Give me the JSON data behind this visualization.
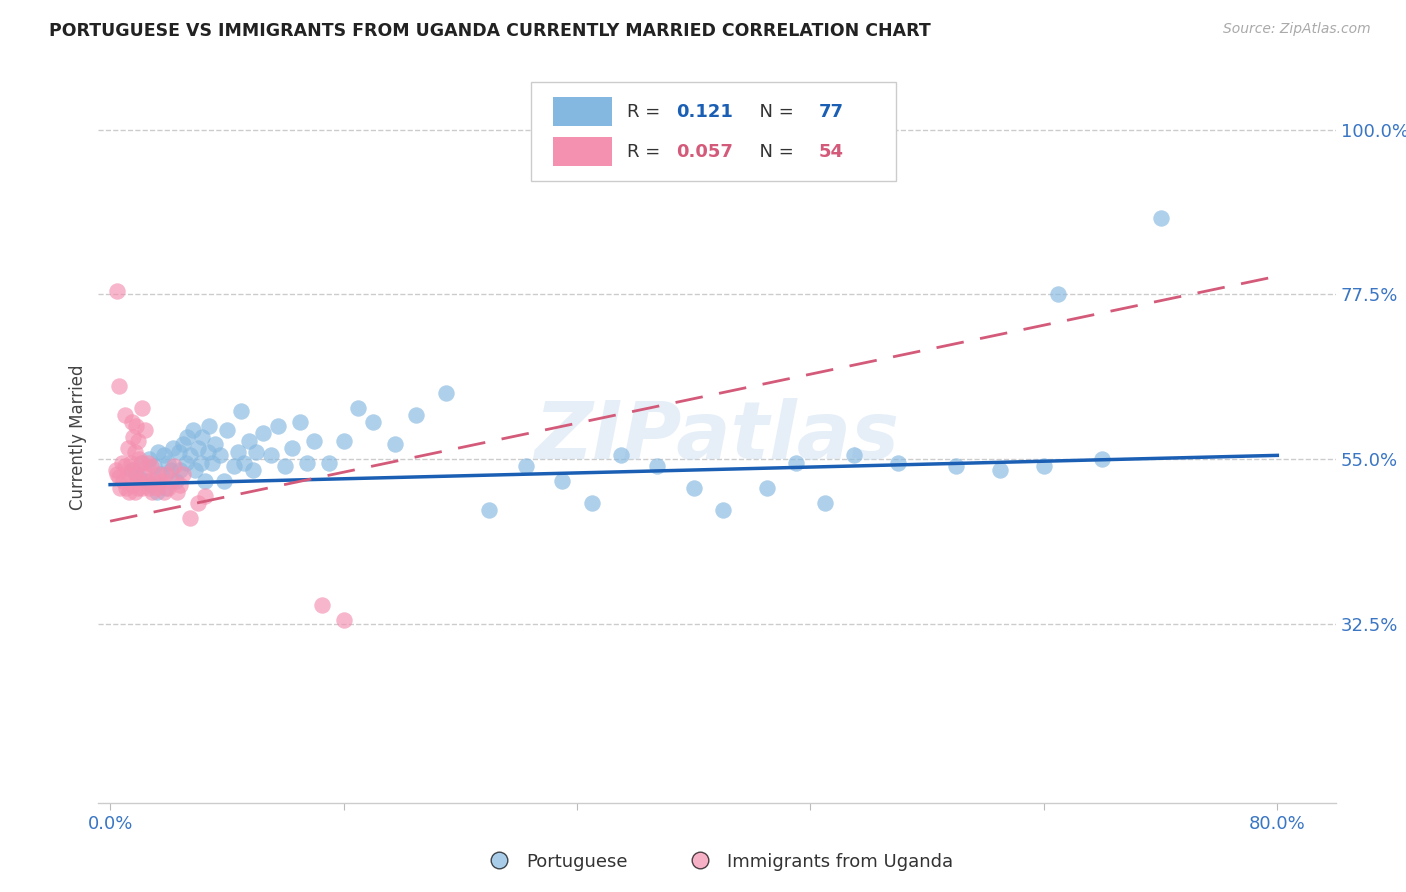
{
  "title": "PORTUGUESE VS IMMIGRANTS FROM UGANDA CURRENTLY MARRIED CORRELATION CHART",
  "source": "Source: ZipAtlas.com",
  "ylabel": "Currently Married",
  "legend1_label": "Portuguese",
  "legend2_label": "Immigrants from Uganda",
  "r1": 0.121,
  "n1": 77,
  "r2": 0.057,
  "n2": 54,
  "xlim": [
    -0.008,
    0.84
  ],
  "ylim": [
    0.08,
    1.08
  ],
  "yticks": [
    0.325,
    0.55,
    0.775,
    1.0
  ],
  "ytick_labels": [
    "32.5%",
    "55.0%",
    "77.5%",
    "100.0%"
  ],
  "xtick_positions": [
    0.0,
    0.16,
    0.32,
    0.48,
    0.64,
    0.8
  ],
  "xtick_labels": [
    "0.0%",
    "",
    "",
    "",
    "",
    "80.0%"
  ],
  "color_blue": "#85b8e0",
  "color_pink": "#f490b0",
  "trendline_blue": "#1a5fb4",
  "trendline_pink": "#d45a7a",
  "watermark": "ZIPatlas",
  "title_color": "#222222",
  "axis_color": "#3a76c4",
  "grid_color": "#cccccc",
  "background_color": "#ffffff",
  "blue_trend_x0": 0.0,
  "blue_trend_y0": 0.515,
  "blue_trend_x1": 0.8,
  "blue_trend_y1": 0.555,
  "pink_trend_x0": 0.0,
  "pink_trend_y0": 0.465,
  "pink_trend_x1": 0.8,
  "pink_trend_y1": 0.8,
  "blue_points_x": [
    0.015,
    0.018,
    0.02,
    0.022,
    0.025,
    0.027,
    0.028,
    0.03,
    0.032,
    0.033,
    0.035,
    0.037,
    0.038,
    0.04,
    0.042,
    0.043,
    0.045,
    0.047,
    0.048,
    0.05,
    0.052,
    0.053,
    0.055,
    0.057,
    0.058,
    0.06,
    0.062,
    0.063,
    0.065,
    0.067,
    0.068,
    0.07,
    0.072,
    0.075,
    0.078,
    0.08,
    0.085,
    0.088,
    0.09,
    0.092,
    0.095,
    0.098,
    0.1,
    0.105,
    0.11,
    0.115,
    0.12,
    0.125,
    0.13,
    0.135,
    0.14,
    0.15,
    0.16,
    0.17,
    0.18,
    0.195,
    0.21,
    0.23,
    0.26,
    0.285,
    0.31,
    0.33,
    0.35,
    0.375,
    0.4,
    0.42,
    0.45,
    0.47,
    0.49,
    0.51,
    0.54,
    0.58,
    0.61,
    0.64,
    0.65,
    0.68,
    0.72
  ],
  "blue_points_y": [
    0.535,
    0.53,
    0.525,
    0.545,
    0.52,
    0.55,
    0.515,
    0.54,
    0.505,
    0.56,
    0.53,
    0.555,
    0.51,
    0.545,
    0.535,
    0.565,
    0.52,
    0.56,
    0.535,
    0.57,
    0.545,
    0.58,
    0.555,
    0.59,
    0.535,
    0.565,
    0.545,
    0.58,
    0.52,
    0.56,
    0.595,
    0.545,
    0.57,
    0.555,
    0.52,
    0.59,
    0.54,
    0.56,
    0.615,
    0.545,
    0.575,
    0.535,
    0.56,
    0.585,
    0.555,
    0.595,
    0.54,
    0.565,
    0.6,
    0.545,
    0.575,
    0.545,
    0.575,
    0.62,
    0.6,
    0.57,
    0.61,
    0.64,
    0.48,
    0.54,
    0.52,
    0.49,
    0.555,
    0.54,
    0.51,
    0.48,
    0.51,
    0.545,
    0.49,
    0.555,
    0.545,
    0.54,
    0.535,
    0.54,
    0.775,
    0.55,
    0.88
  ],
  "pink_points_x": [
    0.004,
    0.005,
    0.006,
    0.007,
    0.008,
    0.009,
    0.01,
    0.011,
    0.012,
    0.013,
    0.014,
    0.015,
    0.016,
    0.017,
    0.018,
    0.019,
    0.02,
    0.021,
    0.022,
    0.024,
    0.025,
    0.026,
    0.027,
    0.028,
    0.029,
    0.03,
    0.032,
    0.033,
    0.035,
    0.037,
    0.038,
    0.04,
    0.042,
    0.044,
    0.046,
    0.048,
    0.05,
    0.055,
    0.06,
    0.065,
    0.01,
    0.012,
    0.015,
    0.016,
    0.017,
    0.018,
    0.019,
    0.02,
    0.022,
    0.024,
    0.145,
    0.16,
    0.005,
    0.006
  ],
  "pink_points_y": [
    0.535,
    0.53,
    0.525,
    0.51,
    0.545,
    0.52,
    0.54,
    0.51,
    0.53,
    0.505,
    0.545,
    0.515,
    0.535,
    0.505,
    0.53,
    0.51,
    0.52,
    0.545,
    0.51,
    0.53,
    0.52,
    0.545,
    0.51,
    0.54,
    0.505,
    0.52,
    0.51,
    0.53,
    0.52,
    0.505,
    0.53,
    0.51,
    0.52,
    0.54,
    0.505,
    0.515,
    0.53,
    0.47,
    0.49,
    0.5,
    0.61,
    0.565,
    0.6,
    0.58,
    0.56,
    0.595,
    0.575,
    0.55,
    0.62,
    0.59,
    0.35,
    0.33,
    0.78,
    0.65
  ]
}
